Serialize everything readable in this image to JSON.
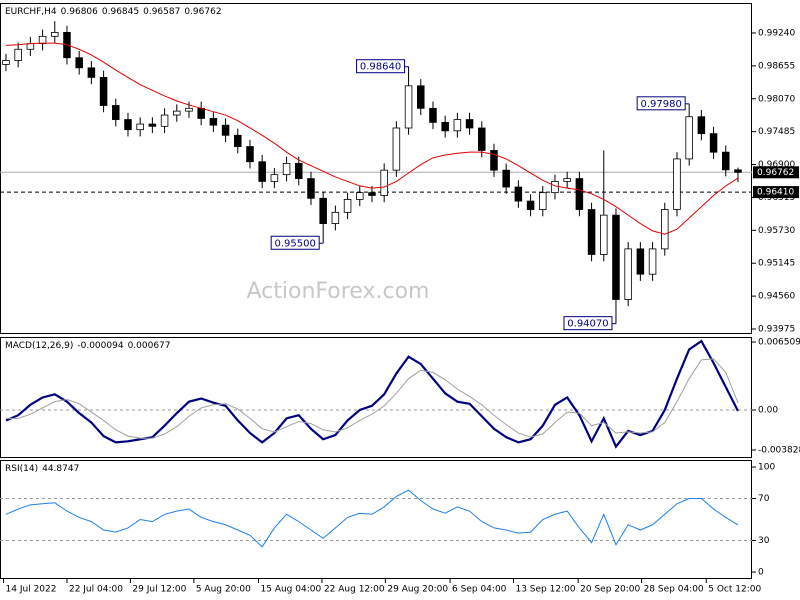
{
  "chart_data": [
    {
      "type": "candlestick",
      "title": "EURCHF,H4",
      "watermark": "ActionForex.com",
      "xlim": [
        -0.49,
        61.15
      ],
      "ylim": [
        0.93904,
        0.99773
      ],
      "yticks": [
        {
          "value": 0.9924,
          "label": "0.99240"
        },
        0.98655,
        {
          "value": 0.9807,
          "label": "0.98070"
        },
        0.97485,
        {
          "value": 0.969,
          "label": "0.96900"
        },
        0.96315,
        {
          "value": 0.9573,
          "label": "0.95730"
        },
        0.95145,
        {
          "value": 0.9456,
          "label": "0.94560"
        },
        0.93975
      ],
      "up_color": "#ffffff",
      "down_color": "#000000",
      "outline_color": "#000000",
      "open": [
        0.9868,
        0.9875,
        0.9895,
        0.9905,
        0.9918,
        0.9925,
        0.988,
        0.9862,
        0.9845,
        0.9795,
        0.977,
        0.9752,
        0.9762,
        0.9758,
        0.9778,
        0.9785,
        0.979,
        0.9772,
        0.976,
        0.9742,
        0.9722,
        0.9695,
        0.966,
        0.9672,
        0.9692,
        0.9665,
        0.963,
        0.9585,
        0.9605,
        0.9628,
        0.964,
        0.9635,
        0.968,
        0.9755,
        0.983,
        0.979,
        0.9765,
        0.975,
        0.977,
        0.9755,
        0.9715,
        0.968,
        0.965,
        0.9625,
        0.961,
        0.964,
        0.966,
        0.9665,
        0.961,
        0.953,
        0.96,
        0.945,
        0.954,
        0.9495,
        0.954,
        0.961,
        0.97,
        0.9775,
        0.9745,
        0.9712,
        0.96806
      ],
      "high": [
        0.9887,
        0.9907,
        0.9917,
        0.993,
        0.9945,
        0.9937,
        0.9892,
        0.9874,
        0.9857,
        0.9807,
        0.9782,
        0.9774,
        0.9774,
        0.979,
        0.9797,
        0.9802,
        0.9802,
        0.9784,
        0.9772,
        0.9754,
        0.9734,
        0.9707,
        0.9684,
        0.9704,
        0.9704,
        0.9677,
        0.9642,
        0.9617,
        0.964,
        0.9652,
        0.9652,
        0.9692,
        0.9767,
        0.9864,
        0.9842,
        0.9802,
        0.9777,
        0.9782,
        0.9782,
        0.9767,
        0.9727,
        0.9692,
        0.9662,
        0.9637,
        0.9652,
        0.9672,
        0.9677,
        0.9677,
        0.9622,
        0.9715,
        0.9612,
        0.9552,
        0.9552,
        0.9552,
        0.9622,
        0.9712,
        0.9798,
        0.9787,
        0.9757,
        0.9724,
        0.96845
      ],
      "low": [
        0.9856,
        0.9863,
        0.9883,
        0.9893,
        0.9906,
        0.9868,
        0.985,
        0.9833,
        0.9783,
        0.9758,
        0.974,
        0.974,
        0.9746,
        0.9746,
        0.9766,
        0.9773,
        0.976,
        0.9748,
        0.973,
        0.971,
        0.9683,
        0.9648,
        0.9648,
        0.966,
        0.9653,
        0.9618,
        0.955,
        0.9573,
        0.9593,
        0.9616,
        0.9623,
        0.9623,
        0.9668,
        0.9743,
        0.9778,
        0.9753,
        0.9738,
        0.9738,
        0.9743,
        0.9703,
        0.9668,
        0.9638,
        0.9613,
        0.9598,
        0.9598,
        0.9628,
        0.9648,
        0.9598,
        0.9518,
        0.9518,
        0.9407,
        0.9438,
        0.9483,
        0.9483,
        0.9528,
        0.9598,
        0.9688,
        0.9733,
        0.97,
        0.9669,
        0.96587
      ],
      "close": [
        0.9875,
        0.9895,
        0.9905,
        0.9918,
        0.9925,
        0.988,
        0.9862,
        0.9845,
        0.9795,
        0.977,
        0.9752,
        0.9762,
        0.9758,
        0.9778,
        0.9785,
        0.979,
        0.9772,
        0.976,
        0.9742,
        0.9722,
        0.9695,
        0.966,
        0.9672,
        0.9692,
        0.9665,
        0.963,
        0.9585,
        0.9605,
        0.9628,
        0.964,
        0.9635,
        0.968,
        0.9755,
        0.983,
        0.979,
        0.9765,
        0.975,
        0.977,
        0.9755,
        0.9715,
        0.968,
        0.965,
        0.9625,
        0.961,
        0.964,
        0.966,
        0.9665,
        0.961,
        0.953,
        0.96,
        0.945,
        0.954,
        0.9495,
        0.954,
        0.961,
        0.97,
        0.9775,
        0.9745,
        0.9712,
        0.96806,
        0.96762
      ],
      "series": [
        {
          "color": "#e00000",
          "values": [
            0.9902,
            0.9903,
            0.9905,
            0.9906,
            0.9906,
            0.9903,
            0.9895,
            0.9885,
            0.9872,
            0.9858,
            0.9845,
            0.9832,
            0.9822,
            0.9812,
            0.9803,
            0.9796,
            0.979,
            0.9784,
            0.9778,
            0.9768,
            0.9755,
            0.9742,
            0.9728,
            0.9712,
            0.9698,
            0.9688,
            0.9678,
            0.9668,
            0.966,
            0.9652,
            0.9648,
            0.965,
            0.966,
            0.9675,
            0.969,
            0.9702,
            0.9707,
            0.971,
            0.9712,
            0.9712,
            0.9708,
            0.97,
            0.9688,
            0.9675,
            0.9662,
            0.9652,
            0.9648,
            0.9645,
            0.9638,
            0.9628,
            0.9615,
            0.96,
            0.9585,
            0.9572,
            0.9566,
            0.9575,
            0.9595,
            0.9615,
            0.9635,
            0.9652,
            0.9666
          ]
        }
      ],
      "hline": {
        "value": 0.9641,
        "label": "0.96410"
      },
      "annotations": [
        {
          "value": 0.9864,
          "label": "0.98640"
        },
        {
          "value": 0.9798,
          "label": "0.97980"
        },
        {
          "value": 0.955,
          "label": "0.95500"
        },
        {
          "value": 0.9407,
          "label": "0.94070"
        }
      ]
    },
    {
      "type": "line",
      "title": "MACD(12,26,9)",
      "xlim": [
        -0.49,
        61.15
      ],
      "ylim": [
        -0.0045,
        0.00699
      ],
      "yticks": [
        0.006509,
        {
          "value": 0,
          "label": "0.00"
        },
        -0.003828
      ],
      "levels": [
        0
      ],
      "series": [
        {
          "color": "#000080",
          "width": 2.2,
          "values": [
            -0.001,
            -0.0005,
            0.0005,
            0.0012,
            0.0015,
            0.0008,
            -0.0003,
            -0.0012,
            -0.0025,
            -0.0031,
            -0.003,
            -0.0028,
            -0.0026,
            -0.0015,
            -0.0003,
            0.0008,
            0.0011,
            0.0007,
            0.0004,
            -0.001,
            -0.0022,
            -0.0031,
            -0.0022,
            -0.0008,
            -0.0005,
            -0.0018,
            -0.0028,
            -0.0024,
            -0.001,
            0,
            0.0004,
            0.0015,
            0.0035,
            0.0051,
            0.0044,
            0.003,
            0.0016,
            0.0008,
            0.0006,
            -0.0006,
            -0.0018,
            -0.0026,
            -0.0031,
            -0.0028,
            -0.0015,
            0.0005,
            0.0012,
            -0.0005,
            -0.003,
            -0.0008,
            -0.0035,
            -0.002,
            -0.0024,
            -0.002,
            0,
            0.003,
            0.0058,
            0.0066,
            0.0045,
            0.0022,
            -9.4e-05
          ]
        },
        {
          "color": "#a0a0a0",
          "width": 1,
          "values": [
            -0.0008,
            -0.0008,
            -0.0004,
            0.0002,
            0.0008,
            0.001,
            0.0006,
            -0.0002,
            -0.001,
            -0.0019,
            -0.0025,
            -0.0027,
            -0.0027,
            -0.0023,
            -0.0016,
            -0.0006,
            0.0002,
            0.0005,
            0.0006,
            0.0001,
            -0.0008,
            -0.0018,
            -0.0021,
            -0.0016,
            -0.0011,
            -0.0013,
            -0.0019,
            -0.0021,
            -0.0017,
            -0.001,
            -0.0004,
            0.0004,
            0.0016,
            0.003,
            0.0038,
            0.0036,
            0.0029,
            0.002,
            0.0013,
            0.0005,
            -0.0005,
            -0.0014,
            -0.0022,
            -0.0026,
            -0.0023,
            -0.0012,
            -0.0002,
            -0.0003,
            -0.0015,
            -0.0012,
            -0.0022,
            -0.0021,
            -0.0022,
            -0.0021,
            -0.0012,
            0.0008,
            0.003,
            0.0048,
            0.0049,
            0.0036,
            0.000677
          ]
        }
      ]
    },
    {
      "type": "line",
      "title": "RSI(14)",
      "xlim": [
        -0.49,
        61.15
      ],
      "ylim": [
        -5.7,
        106.7
      ],
      "yticks": [
        100,
        70,
        30,
        0
      ],
      "levels": [
        70,
        30
      ],
      "xticks": [
        {
          "value": -0.2,
          "label": "14 Jul 2022"
        },
        {
          "value": 5,
          "label": "22 Jul 04:00"
        },
        {
          "value": 10.2,
          "label": "29 Jul 12:00"
        },
        {
          "value": 15.4,
          "label": "5 Aug 20:00"
        },
        {
          "value": 20.7,
          "label": "15 Aug 04:00"
        },
        {
          "value": 25.9,
          "label": "22 Aug 12:00"
        },
        {
          "value": 31.1,
          "label": "29 Aug 20:00"
        },
        {
          "value": 36.4,
          "label": "6 Sep 04:00"
        },
        {
          "value": 41.6,
          "label": "13 Sep 12:00"
        },
        {
          "value": 46.9,
          "label": "20 Sep 20:00"
        },
        {
          "value": 52.1,
          "label": "28 Sep 04:00"
        },
        {
          "value": 57.4,
          "label": "5 Oct 12:00"
        }
      ],
      "series": [
        {
          "color": "#1e7fe6",
          "width": 1,
          "values": [
            55,
            60,
            64,
            65,
            66,
            58,
            52,
            48,
            40,
            38,
            42,
            50,
            48,
            55,
            58,
            60,
            52,
            48,
            45,
            40,
            35,
            24,
            42,
            55,
            48,
            40,
            32,
            42,
            52,
            56,
            55,
            62,
            72,
            78,
            68,
            60,
            56,
            62,
            58,
            48,
            42,
            40,
            37,
            38,
            50,
            55,
            58,
            42,
            28,
            55,
            26,
            45,
            40,
            45,
            55,
            65,
            70,
            70,
            60,
            52,
            44.8747
          ]
        }
      ]
    }
  ]
}
